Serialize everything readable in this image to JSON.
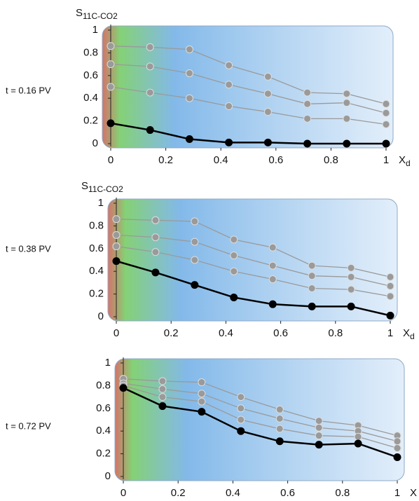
{
  "chart_data": [
    {
      "type": "line",
      "annotation": "t = 0.16 PV",
      "ylabel": "S",
      "ylabel_sub": "11C-CO2",
      "xlabel": "X",
      "xlabel_sub": "d",
      "x": [
        0,
        0.143,
        0.286,
        0.429,
        0.571,
        0.714,
        0.857,
        1
      ],
      "xlim": [
        0,
        1
      ],
      "ylim": [
        0,
        1
      ],
      "xticks": [
        0,
        0.2,
        0.4,
        0.6,
        0.8,
        1
      ],
      "yticks": [
        0,
        0.2,
        0.4,
        0.6,
        0.8,
        1
      ],
      "series": [
        {
          "color": "#9a9a9a",
          "values": [
            0.86,
            0.85,
            0.83,
            0.69,
            0.59,
            0.45,
            0.44,
            0.35
          ]
        },
        {
          "color": "#9a9a9a",
          "values": [
            0.7,
            0.68,
            0.62,
            0.52,
            0.44,
            0.35,
            0.36,
            0.27
          ]
        },
        {
          "color": "#9a9a9a",
          "values": [
            0.5,
            0.45,
            0.4,
            0.33,
            0.28,
            0.22,
            0.22,
            0.17
          ]
        },
        {
          "color": "#000000",
          "values": [
            0.18,
            0.12,
            0.04,
            0.01,
            0.01,
            0.0,
            0.0,
            0.0
          ]
        }
      ]
    },
    {
      "type": "line",
      "annotation": "t = 0.38 PV",
      "ylabel": "S",
      "ylabel_sub": "11C-CO2",
      "xlabel": "X",
      "xlabel_sub": "d",
      "x": [
        0,
        0.143,
        0.286,
        0.429,
        0.571,
        0.714,
        0.857,
        1
      ],
      "xlim": [
        0,
        1
      ],
      "ylim": [
        0,
        1
      ],
      "xticks": [
        0,
        0.2,
        0.4,
        0.6,
        0.8,
        1
      ],
      "yticks": [
        0,
        0.2,
        0.4,
        0.6,
        0.8,
        1
      ],
      "series": [
        {
          "color": "#9a9a9a",
          "values": [
            0.86,
            0.85,
            0.84,
            0.68,
            0.61,
            0.45,
            0.43,
            0.35
          ]
        },
        {
          "color": "#9a9a9a",
          "values": [
            0.72,
            0.7,
            0.66,
            0.54,
            0.45,
            0.36,
            0.35,
            0.27
          ]
        },
        {
          "color": "#9a9a9a",
          "values": [
            0.62,
            0.57,
            0.5,
            0.4,
            0.33,
            0.25,
            0.24,
            0.18
          ]
        },
        {
          "color": "#000000",
          "values": [
            0.49,
            0.39,
            0.28,
            0.17,
            0.11,
            0.09,
            0.09,
            0.01
          ]
        }
      ]
    },
    {
      "type": "line",
      "annotation": "t = 0.72 PV",
      "xlabel": "X",
      "x": [
        0,
        0.143,
        0.286,
        0.429,
        0.571,
        0.714,
        0.857,
        1
      ],
      "xlim": [
        0,
        1
      ],
      "ylim": [
        0,
        1
      ],
      "xticks": [
        0,
        0.2,
        0.4,
        0.6,
        0.8,
        1
      ],
      "yticks": [
        0,
        0.2,
        0.4,
        0.6,
        0.8,
        1
      ],
      "series": [
        {
          "color": "#9a9a9a",
          "values": [
            0.86,
            0.84,
            0.83,
            0.7,
            0.59,
            0.49,
            0.45,
            0.36
          ]
        },
        {
          "color": "#9a9a9a",
          "values": [
            0.82,
            0.77,
            0.73,
            0.6,
            0.51,
            0.43,
            0.4,
            0.31
          ]
        },
        {
          "color": "#9a9a9a",
          "values": [
            0.8,
            0.7,
            0.66,
            0.5,
            0.42,
            0.36,
            0.35,
            0.25
          ]
        },
        {
          "color": "#000000",
          "values": [
            0.78,
            0.62,
            0.57,
            0.4,
            0.31,
            0.28,
            0.29,
            0.17
          ]
        }
      ]
    }
  ]
}
